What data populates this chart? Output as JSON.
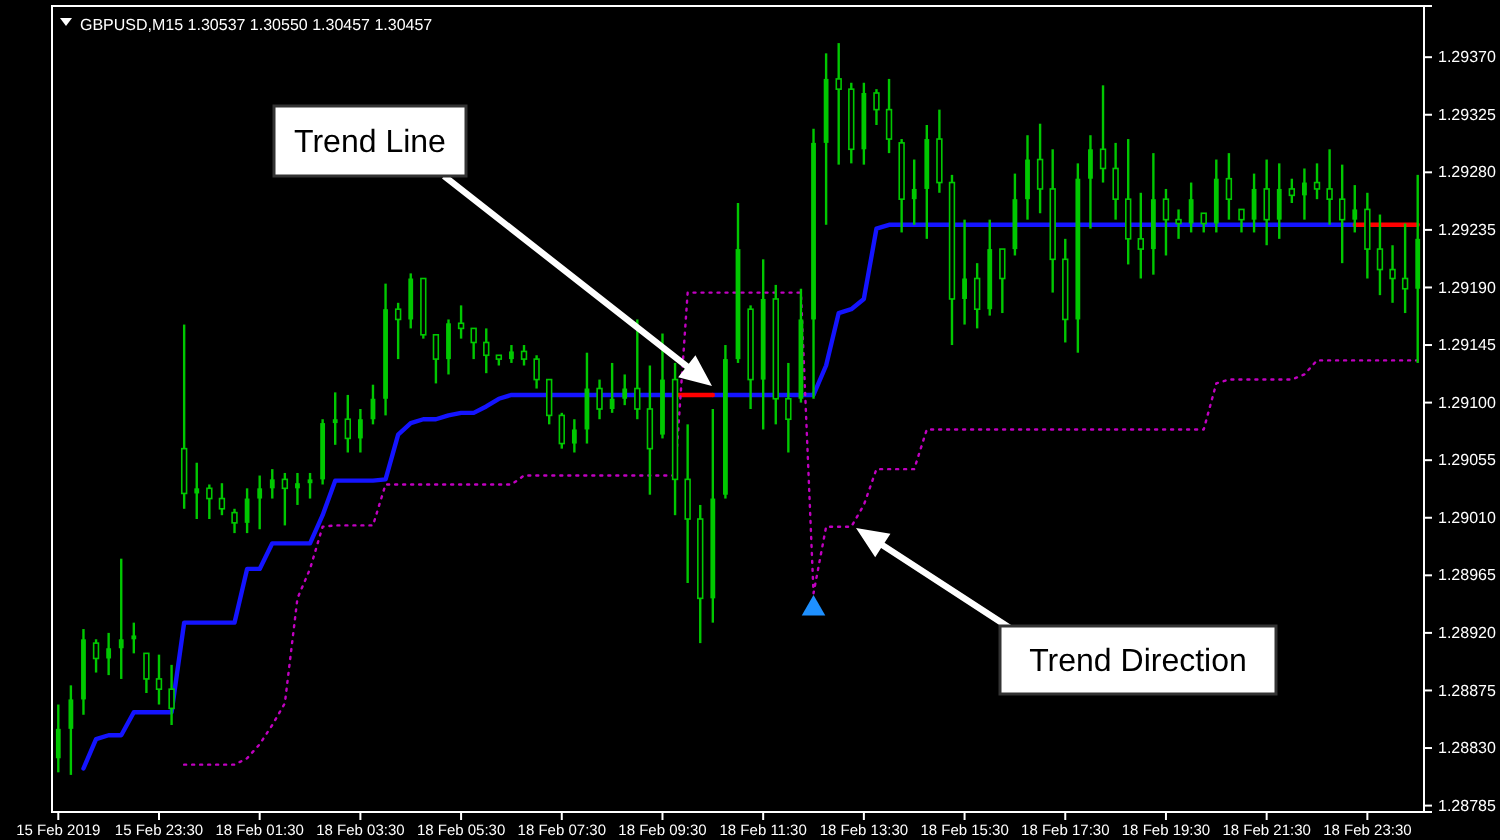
{
  "chart_data": {
    "type": "candlestick",
    "title": "GBPUSD,M15  1.30537 1.30550 1.30457 1.30457",
    "color": "#00c800",
    "categories": [
      "15 Feb 2019",
      null,
      null,
      null,
      null,
      null,
      null,
      null,
      "15 Feb 23:30",
      null,
      null,
      null,
      null,
      null,
      null,
      null,
      "18 Feb 01:30",
      null,
      null,
      null,
      null,
      null,
      null,
      null,
      "18 Feb 03:30",
      null,
      null,
      null,
      null,
      null,
      null,
      null,
      "18 Feb 05:30",
      null,
      null,
      null,
      null,
      null,
      null,
      null,
      "18 Feb 07:30",
      null,
      null,
      null,
      null,
      null,
      null,
      null,
      "18 Feb 09:30",
      null,
      null,
      null,
      null,
      null,
      null,
      null,
      "18 Feb 11:30",
      null,
      null,
      null,
      null,
      null,
      null,
      null,
      "18 Feb 13:30",
      null,
      null,
      null,
      null,
      null,
      null,
      null,
      "18 Feb 15:30",
      null,
      null,
      null,
      null,
      null,
      null,
      null,
      "18 Feb 17:30",
      null,
      null,
      null,
      null,
      null,
      null,
      null,
      "18 Feb 19:30",
      null,
      null,
      null,
      null,
      null,
      null,
      null,
      "18 Feb 21:30",
      null,
      null,
      null,
      null,
      null,
      null,
      null,
      "18 Feb 23:30",
      null,
      null,
      null,
      null
    ],
    "ohlc": [
      [
        1.28822,
        1.28864,
        1.28811,
        1.28845
      ],
      [
        1.28845,
        1.28879,
        1.28809,
        1.28868
      ],
      [
        1.28868,
        1.28923,
        1.28856,
        1.28915
      ],
      [
        1.28912,
        1.28915,
        1.28889,
        1.289
      ],
      [
        1.289,
        1.2892,
        1.28887,
        1.28908
      ],
      [
        1.28908,
        1.28978,
        1.28884,
        1.28915
      ],
      [
        1.28915,
        1.28928,
        1.28904,
        1.28918
      ],
      [
        1.28904,
        1.28904,
        1.28873,
        1.28884
      ],
      [
        1.28884,
        1.28903,
        1.28864,
        1.28876
      ],
      [
        1.28876,
        1.28895,
        1.28848,
        1.28861
      ],
      [
        1.29064,
        1.29161,
        1.29017,
        1.29029
      ],
      [
        1.29029,
        1.29053,
        1.29009,
        1.29033
      ],
      [
        1.29033,
        1.29036,
        1.29009,
        1.29025
      ],
      [
        1.29025,
        1.29037,
        1.29012,
        1.29017
      ],
      [
        1.29014,
        1.29017,
        1.28998,
        1.29006
      ],
      [
        1.29006,
        1.29033,
        1.28998,
        1.29025
      ],
      [
        1.29025,
        1.29043,
        1.29001,
        1.29033
      ],
      [
        1.29033,
        1.29048,
        1.29025,
        1.2904
      ],
      [
        1.2904,
        1.29045,
        1.29004,
        1.29033
      ],
      [
        1.29033,
        1.29045,
        1.2902,
        1.29037
      ],
      [
        1.29037,
        1.29045,
        1.29025,
        1.2904
      ],
      [
        1.2904,
        1.29087,
        1.29036,
        1.29084
      ],
      [
        1.29084,
        1.29108,
        1.29067,
        1.29087
      ],
      [
        1.29087,
        1.29106,
        1.29061,
        1.29072
      ],
      [
        1.29072,
        1.29095,
        1.29061,
        1.29087
      ],
      [
        1.29087,
        1.29114,
        1.29083,
        1.29103
      ],
      [
        1.29103,
        1.29193,
        1.2909,
        1.29173
      ],
      [
        1.29173,
        1.29178,
        1.29134,
        1.29165
      ],
      [
        1.29165,
        1.29201,
        1.29158,
        1.29197
      ],
      [
        1.29197,
        1.29197,
        1.2915,
        1.29153
      ],
      [
        1.29153,
        1.29153,
        1.29115,
        1.29134
      ],
      [
        1.29134,
        1.29165,
        1.29122,
        1.29162
      ],
      [
        1.29162,
        1.29176,
        1.2915,
        1.29158
      ],
      [
        1.29158,
        1.29158,
        1.29134,
        1.29147
      ],
      [
        1.29147,
        1.29158,
        1.29123,
        1.29137
      ],
      [
        1.29137,
        1.29137,
        1.29129,
        1.29134
      ],
      [
        1.29134,
        1.29145,
        1.29131,
        1.2914
      ],
      [
        1.2914,
        1.29145,
        1.29129,
        1.29134
      ],
      [
        1.29134,
        1.29137,
        1.29111,
        1.29118
      ],
      [
        1.29118,
        1.29118,
        1.29083,
        1.2909
      ],
      [
        1.2909,
        1.29092,
        1.29064,
        1.29068
      ],
      [
        1.29068,
        1.29087,
        1.29061,
        1.29079
      ],
      [
        1.29079,
        1.29139,
        1.29068,
        1.29111
      ],
      [
        1.29111,
        1.29118,
        1.29087,
        1.29095
      ],
      [
        1.29095,
        1.29131,
        1.29092,
        1.29103
      ],
      [
        1.29103,
        1.29122,
        1.29098,
        1.29111
      ],
      [
        1.29111,
        1.29165,
        1.29087,
        1.29095
      ],
      [
        1.29095,
        1.29129,
        1.29028,
        1.29064
      ],
      [
        1.29075,
        1.29154,
        1.29072,
        1.29118
      ],
      [
        1.29118,
        1.29131,
        1.29012,
        1.2904
      ],
      [
        1.2904,
        1.29083,
        1.28959,
        1.29009
      ],
      [
        1.29009,
        1.2902,
        1.28912,
        1.28947
      ],
      [
        1.28947,
        1.29095,
        1.28928,
        1.29025
      ],
      [
        1.29028,
        1.29145,
        1.29025,
        1.29134
      ],
      [
        1.29134,
        1.29256,
        1.29131,
        1.2922
      ],
      [
        1.29173,
        1.29176,
        1.29095,
        1.29118
      ],
      [
        1.29118,
        1.29212,
        1.29079,
        1.29181
      ],
      [
        1.29181,
        1.29192,
        1.29083,
        1.29103
      ],
      [
        1.29103,
        1.29131,
        1.29061,
        1.29087
      ],
      [
        1.29103,
        1.29189,
        1.291,
        1.29165
      ],
      [
        1.29165,
        1.29314,
        1.29103,
        1.29303
      ],
      [
        1.29303,
        1.29373,
        1.29239,
        1.29353
      ],
      [
        1.29353,
        1.29381,
        1.29286,
        1.29345
      ],
      [
        1.29345,
        1.2935,
        1.29287,
        1.29298
      ],
      [
        1.29298,
        1.2935,
        1.29286,
        1.29342
      ],
      [
        1.29342,
        1.29345,
        1.29317,
        1.29329
      ],
      [
        1.29329,
        1.29353,
        1.29295,
        1.29306
      ],
      [
        1.29303,
        1.29306,
        1.29233,
        1.29259
      ],
      [
        1.29259,
        1.2929,
        1.29239,
        1.29267
      ],
      [
        1.29267,
        1.29317,
        1.29228,
        1.29306
      ],
      [
        1.29306,
        1.29329,
        1.29264,
        1.29272
      ],
      [
        1.29272,
        1.29278,
        1.29145,
        1.29181
      ],
      [
        1.29181,
        1.29243,
        1.29161,
        1.29197
      ],
      [
        1.29197,
        1.29209,
        1.29158,
        1.29173
      ],
      [
        1.29173,
        1.29243,
        1.29168,
        1.2922
      ],
      [
        1.2922,
        1.2922,
        1.2917,
        1.29197
      ],
      [
        1.2922,
        1.29279,
        1.29215,
        1.29259
      ],
      [
        1.29259,
        1.29309,
        1.29243,
        1.2929
      ],
      [
        1.2929,
        1.29318,
        1.29248,
        1.29267
      ],
      [
        1.29267,
        1.29298,
        1.29186,
        1.29212
      ],
      [
        1.29212,
        1.29228,
        1.29147,
        1.29165
      ],
      [
        1.29165,
        1.29287,
        1.29139,
        1.29275
      ],
      [
        1.29275,
        1.29309,
        1.29236,
        1.29298
      ],
      [
        1.29298,
        1.29348,
        1.29272,
        1.29283
      ],
      [
        1.29283,
        1.29303,
        1.29243,
        1.29259
      ],
      [
        1.29259,
        1.29306,
        1.29208,
        1.29228
      ],
      [
        1.29228,
        1.29264,
        1.29197,
        1.2922
      ],
      [
        1.2922,
        1.29295,
        1.292,
        1.29259
      ],
      [
        1.29259,
        1.29267,
        1.29215,
        1.29243
      ],
      [
        1.29243,
        1.29251,
        1.29228,
        1.2924
      ],
      [
        1.2924,
        1.29272,
        1.29233,
        1.29259
      ],
      [
        1.29248,
        1.29248,
        1.29233,
        1.2924
      ],
      [
        1.2924,
        1.2929,
        1.29233,
        1.29275
      ],
      [
        1.29275,
        1.29295,
        1.29243,
        1.29259
      ],
      [
        1.29251,
        1.29251,
        1.29233,
        1.29243
      ],
      [
        1.29243,
        1.29279,
        1.29233,
        1.29267
      ],
      [
        1.29267,
        1.2929,
        1.29223,
        1.29243
      ],
      [
        1.29243,
        1.29287,
        1.29228,
        1.29267
      ],
      [
        1.29267,
        1.29275,
        1.29256,
        1.29262
      ],
      [
        1.29262,
        1.29283,
        1.29243,
        1.29272
      ],
      [
        1.29272,
        1.29287,
        1.29259,
        1.29267
      ],
      [
        1.29267,
        1.29298,
        1.29239,
        1.29259
      ],
      [
        1.29259,
        1.29286,
        1.29209,
        1.29243
      ],
      [
        1.29243,
        1.2927,
        1.29233,
        1.29251
      ],
      [
        1.29251,
        1.29264,
        1.29197,
        1.2922
      ],
      [
        1.2922,
        1.29247,
        1.29184,
        1.29204
      ],
      [
        1.29204,
        1.29223,
        1.29178,
        1.29197
      ],
      [
        1.29197,
        1.2924,
        1.2917,
        1.29189
      ],
      [
        1.29189,
        1.29278,
        1.29131,
        1.29228
      ]
    ],
    "series": [
      {
        "type": "line",
        "color": "#1414ff",
        "values": [
          null,
          null,
          1.28814,
          1.28837,
          1.2884,
          1.2884,
          1.28858,
          1.28858,
          1.28858,
          1.28858,
          1.28928,
          1.28928,
          1.28928,
          1.28928,
          1.28928,
          1.2897,
          1.2897,
          1.2899,
          1.2899,
          1.2899,
          1.2899,
          1.29012,
          1.29039,
          1.29039,
          1.29039,
          1.29039,
          1.2904,
          1.29075,
          1.29084,
          1.29087,
          1.29087,
          1.2909,
          1.29092,
          1.29092,
          1.29097,
          1.29103,
          1.29106,
          1.29106,
          1.29106,
          1.29106,
          1.29106,
          1.29106,
          1.29106,
          1.29106,
          1.29106,
          1.29106,
          1.29106,
          1.29106,
          1.29106,
          1.29106,
          null,
          null,
          1.29106,
          1.29106,
          1.29106,
          1.29106,
          1.29106,
          1.29106,
          1.29106,
          1.29106,
          1.29106,
          1.29129,
          1.2917,
          1.29173,
          1.29181,
          1.29236,
          1.29239,
          1.29239,
          1.29239,
          1.29239,
          1.29239,
          1.29239,
          1.29239,
          1.29239,
          1.29239,
          1.29239,
          1.29239,
          1.29239,
          1.29239,
          1.29239,
          1.29239,
          1.29239,
          1.29239,
          1.29239,
          1.29239,
          1.29239,
          1.29239,
          1.29239,
          1.29239,
          1.29239,
          1.29239,
          1.29239,
          1.29239,
          1.29239,
          1.29239,
          1.29239,
          1.29239,
          1.29239,
          1.29239,
          1.29239,
          1.29239,
          1.29239,
          1.29239,
          1.29239,
          null,
          null,
          null,
          null,
          null
        ]
      },
      {
        "type": "line",
        "color": "#ff0000",
        "values": [
          null,
          null,
          null,
          null,
          null,
          null,
          null,
          null,
          null,
          null,
          null,
          null,
          null,
          null,
          null,
          null,
          null,
          null,
          null,
          null,
          null,
          null,
          null,
          null,
          null,
          null,
          null,
          null,
          null,
          null,
          null,
          null,
          null,
          null,
          null,
          null,
          null,
          null,
          null,
          null,
          null,
          null,
          null,
          null,
          null,
          null,
          null,
          null,
          null,
          1.29106,
          1.29106,
          1.29106,
          1.29106,
          null,
          null,
          null,
          null,
          null,
          null,
          null,
          null,
          null,
          null,
          null,
          null,
          null,
          null,
          null,
          null,
          null,
          null,
          null,
          null,
          null,
          null,
          null,
          null,
          null,
          null,
          null,
          null,
          null,
          null,
          null,
          null,
          null,
          null,
          null,
          null,
          null,
          null,
          null,
          null,
          null,
          null,
          null,
          null,
          null,
          null,
          null,
          null,
          null,
          null,
          1.29239,
          1.29239,
          1.29239,
          1.29239,
          1.29239,
          1.29239
        ]
      },
      {
        "type": "line",
        "color": "#c000c0",
        "line_style": "dotted",
        "values": [
          null,
          null,
          null,
          null,
          null,
          null,
          null,
          null,
          null,
          null,
          1.28817,
          1.28817,
          1.28817,
          1.28817,
          1.28817,
          1.28822,
          1.28833,
          1.28848,
          1.28865,
          1.28947,
          1.2897,
          1.29003,
          1.29004,
          1.29004,
          1.29004,
          1.29004,
          1.29036,
          1.29036,
          1.29036,
          1.29036,
          1.29036,
          1.29036,
          1.29036,
          1.29036,
          1.29036,
          1.29036,
          1.29036,
          1.29043,
          1.29043,
          1.29043,
          1.29043,
          1.29043,
          1.29043,
          1.29043,
          1.29043,
          1.29043,
          1.29043,
          1.29043,
          1.29043,
          1.29043,
          1.29186,
          1.29186,
          1.29186,
          1.29186,
          1.29186,
          1.29186,
          1.29186,
          1.29186,
          1.29186,
          1.29186,
          1.28951,
          1.29003,
          1.29003,
          1.29003,
          1.2902,
          1.29048,
          1.29048,
          1.29048,
          1.29048,
          1.29079,
          1.29079,
          1.29079,
          1.29079,
          1.29079,
          1.29079,
          1.29079,
          1.29079,
          1.29079,
          1.29079,
          1.29079,
          1.29079,
          1.29079,
          1.29079,
          1.29079,
          1.29079,
          1.29079,
          1.29079,
          1.29079,
          1.29079,
          1.29079,
          1.29079,
          1.29079,
          1.29115,
          1.29118,
          1.29118,
          1.29118,
          1.29118,
          1.29118,
          1.29118,
          1.29122,
          1.29133,
          1.29133,
          1.29133,
          1.29133,
          1.29133,
          1.29133,
          1.29133,
          1.29133,
          1.29133
        ]
      },
      {
        "type": "scatter",
        "color": "#1e90ff",
        "marker": "triangle",
        "values": [
          null,
          null,
          null,
          null,
          null,
          null,
          null,
          null,
          null,
          null,
          null,
          null,
          null,
          null,
          null,
          null,
          null,
          null,
          null,
          null,
          null,
          null,
          null,
          null,
          null,
          null,
          null,
          null,
          null,
          null,
          null,
          null,
          null,
          null,
          null,
          null,
          null,
          null,
          null,
          null,
          null,
          null,
          null,
          null,
          null,
          null,
          null,
          null,
          null,
          null,
          null,
          null,
          null,
          null,
          null,
          null,
          null,
          null,
          null,
          null,
          1.28939,
          null,
          null,
          null,
          null,
          null,
          null,
          null,
          null,
          null,
          null,
          null,
          null,
          null,
          null,
          null,
          null,
          null,
          null,
          null,
          null,
          null,
          null,
          null,
          null,
          null,
          null,
          null,
          null,
          null,
          null,
          null,
          null,
          null,
          null,
          null,
          null,
          null,
          null,
          null,
          null,
          null,
          null,
          null,
          null,
          null,
          null,
          null,
          null
        ]
      }
    ],
    "ylim": [
      1.2878,
      1.2941
    ],
    "yticks": [
      {
        "value": 1.2937,
        "label": "1.29370"
      },
      {
        "value": 1.29325,
        "label": "1.29325"
      },
      {
        "value": 1.2928,
        "label": "1.29280"
      },
      {
        "value": 1.29235,
        "label": "1.29235"
      },
      {
        "value": 1.2919,
        "label": "1.29190"
      },
      {
        "value": 1.29145,
        "label": "1.29145"
      },
      {
        "value": 1.291,
        "label": "1.29100"
      },
      {
        "value": 1.29055,
        "label": "1.29055"
      },
      {
        "value": 1.2901,
        "label": "1.29010"
      },
      {
        "value": 1.28965,
        "label": "1.28965"
      },
      {
        "value": 1.2892,
        "label": "1.28920"
      },
      {
        "value": 1.28875,
        "label": "1.28875"
      },
      {
        "value": 1.2883,
        "label": "1.28830"
      },
      {
        "value": 1.28785,
        "label": "1.28785"
      }
    ],
    "annotations": [
      "Trend Line",
      "Trend Direction"
    ]
  }
}
